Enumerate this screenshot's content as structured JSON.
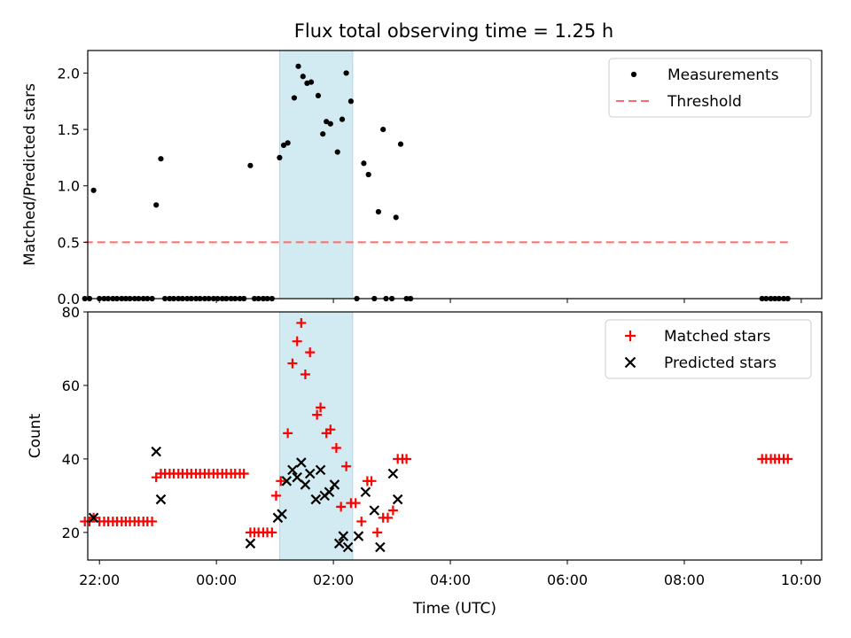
{
  "title": "Flux total observing time = 1.25 h",
  "chart_data": [
    {
      "type": "scatter",
      "ylabel": "Matched/Predicted stars",
      "xlim": [
        -2.2,
        10.35
      ],
      "ylim": [
        0,
        2.2
      ],
      "yticks": [
        0.0,
        0.5,
        1.0,
        1.5,
        2.0
      ],
      "ytick_labels": [
        "0.0",
        "0.5",
        "1.0",
        "1.5",
        "2.0"
      ],
      "legend": {
        "position": "top-right",
        "entries": [
          "Measurements",
          "Threshold"
        ]
      },
      "shaded_interval": {
        "x": [
          1.08,
          2.33
        ],
        "color": "#add8e6"
      },
      "threshold": {
        "name": "Threshold",
        "y": 0.5,
        "x": [
          -2.25,
          9.78
        ],
        "color": "#ff6b6b"
      },
      "series": [
        {
          "name": "Measurements",
          "color": "#000000",
          "points": [
            [
              -2.25,
              0
            ],
            [
              -2.17,
              0
            ],
            [
              -2.1,
              0.96
            ],
            [
              -2.0,
              0
            ],
            [
              -1.92,
              0
            ],
            [
              -1.85,
              0
            ],
            [
              -1.77,
              0
            ],
            [
              -1.7,
              0
            ],
            [
              -1.62,
              0
            ],
            [
              -1.55,
              0
            ],
            [
              -1.48,
              0
            ],
            [
              -1.4,
              0
            ],
            [
              -1.33,
              0
            ],
            [
              -1.25,
              0
            ],
            [
              -1.18,
              0
            ],
            [
              -1.1,
              0
            ],
            [
              -1.03,
              0.83
            ],
            [
              -0.95,
              1.24
            ],
            [
              -0.88,
              0
            ],
            [
              -0.8,
              0
            ],
            [
              -0.73,
              0
            ],
            [
              -0.65,
              0
            ],
            [
              -0.58,
              0
            ],
            [
              -0.5,
              0
            ],
            [
              -0.43,
              0
            ],
            [
              -0.35,
              0
            ],
            [
              -0.28,
              0
            ],
            [
              -0.2,
              0
            ],
            [
              -0.13,
              0
            ],
            [
              -0.05,
              0
            ],
            [
              0.02,
              0
            ],
            [
              0.1,
              0
            ],
            [
              0.17,
              0
            ],
            [
              0.25,
              0
            ],
            [
              0.32,
              0
            ],
            [
              0.4,
              0
            ],
            [
              0.47,
              0
            ],
            [
              0.58,
              1.18
            ],
            [
              0.65,
              0
            ],
            [
              0.72,
              0
            ],
            [
              0.8,
              0
            ],
            [
              0.87,
              0
            ],
            [
              0.95,
              0
            ],
            [
              1.08,
              1.25
            ],
            [
              1.15,
              1.36
            ],
            [
              1.22,
              1.38
            ],
            [
              1.33,
              1.78
            ],
            [
              1.4,
              2.06
            ],
            [
              1.48,
              1.97
            ],
            [
              1.55,
              1.91
            ],
            [
              1.62,
              1.92
            ],
            [
              1.74,
              1.8
            ],
            [
              1.82,
              1.46
            ],
            [
              1.88,
              1.57
            ],
            [
              1.95,
              1.55
            ],
            [
              2.07,
              1.3
            ],
            [
              2.15,
              1.59
            ],
            [
              2.22,
              2.0
            ],
            [
              2.3,
              1.75
            ],
            [
              2.4,
              0
            ],
            [
              2.52,
              1.2
            ],
            [
              2.6,
              1.1
            ],
            [
              2.7,
              0
            ],
            [
              2.77,
              0.77
            ],
            [
              2.85,
              1.5
            ],
            [
              2.9,
              0
            ],
            [
              3.0,
              0
            ],
            [
              3.07,
              0.72
            ],
            [
              3.15,
              1.37
            ],
            [
              3.25,
              0
            ],
            [
              3.32,
              0
            ],
            [
              9.33,
              0
            ],
            [
              9.4,
              0
            ],
            [
              9.48,
              0
            ],
            [
              9.55,
              0
            ],
            [
              9.62,
              0
            ],
            [
              9.7,
              0
            ],
            [
              9.77,
              0
            ]
          ]
        }
      ]
    },
    {
      "type": "scatter",
      "xlabel": "Time (UTC)",
      "ylabel": "Count",
      "xlim": [
        -2.2,
        10.35
      ],
      "ylim": [
        12.5,
        80
      ],
      "yticks": [
        20,
        40,
        60,
        80
      ],
      "ytick_labels": [
        "20",
        "40",
        "60",
        "80"
      ],
      "xticks": [
        -2,
        0,
        2,
        4,
        6,
        8,
        10
      ],
      "xtick_labels": [
        "22:00",
        "00:00",
        "02:00",
        "04:00",
        "06:00",
        "08:00",
        "10:00"
      ],
      "legend": {
        "position": "top-right",
        "entries": [
          "Matched stars",
          "Predicted stars"
        ]
      },
      "shaded_interval": {
        "x": [
          1.08,
          2.33
        ],
        "color": "#add8e6"
      },
      "series": [
        {
          "name": "Matched stars",
          "marker": "plus",
          "color": "#ff0000",
          "points": [
            [
              -2.25,
              23
            ],
            [
              -2.17,
              23
            ],
            [
              -2.1,
              24
            ],
            [
              -2.0,
              23
            ],
            [
              -1.92,
              23
            ],
            [
              -1.85,
              23
            ],
            [
              -1.77,
              23
            ],
            [
              -1.7,
              23
            ],
            [
              -1.62,
              23
            ],
            [
              -1.55,
              23
            ],
            [
              -1.48,
              23
            ],
            [
              -1.4,
              23
            ],
            [
              -1.33,
              23
            ],
            [
              -1.25,
              23
            ],
            [
              -1.18,
              23
            ],
            [
              -1.1,
              23
            ],
            [
              -1.03,
              35
            ],
            [
              -0.95,
              36
            ],
            [
              -0.88,
              36
            ],
            [
              -0.8,
              36
            ],
            [
              -0.73,
              36
            ],
            [
              -0.65,
              36
            ],
            [
              -0.58,
              36
            ],
            [
              -0.5,
              36
            ],
            [
              -0.43,
              36
            ],
            [
              -0.35,
              36
            ],
            [
              -0.28,
              36
            ],
            [
              -0.2,
              36
            ],
            [
              -0.13,
              36
            ],
            [
              -0.05,
              36
            ],
            [
              0.02,
              36
            ],
            [
              0.1,
              36
            ],
            [
              0.17,
              36
            ],
            [
              0.25,
              36
            ],
            [
              0.32,
              36
            ],
            [
              0.4,
              36
            ],
            [
              0.47,
              36
            ],
            [
              0.58,
              20
            ],
            [
              0.65,
              20
            ],
            [
              0.72,
              20
            ],
            [
              0.8,
              20
            ],
            [
              0.87,
              20
            ],
            [
              0.95,
              20
            ],
            [
              1.02,
              30
            ],
            [
              1.1,
              34
            ],
            [
              1.22,
              47
            ],
            [
              1.3,
              66
            ],
            [
              1.38,
              72
            ],
            [
              1.45,
              77
            ],
            [
              1.52,
              63
            ],
            [
              1.6,
              69
            ],
            [
              1.72,
              52
            ],
            [
              1.78,
              54
            ],
            [
              1.88,
              47
            ],
            [
              1.95,
              48
            ],
            [
              2.05,
              43
            ],
            [
              2.13,
              27
            ],
            [
              2.22,
              38
            ],
            [
              2.3,
              28
            ],
            [
              2.38,
              28
            ],
            [
              2.48,
              23
            ],
            [
              2.58,
              34
            ],
            [
              2.65,
              34
            ],
            [
              2.75,
              20
            ],
            [
              2.85,
              24
            ],
            [
              2.93,
              24
            ],
            [
              3.02,
              26
            ],
            [
              3.1,
              40
            ],
            [
              3.18,
              40
            ],
            [
              3.25,
              40
            ],
            [
              9.33,
              40
            ],
            [
              9.4,
              40
            ],
            [
              9.48,
              40
            ],
            [
              9.55,
              40
            ],
            [
              9.62,
              40
            ],
            [
              9.7,
              40
            ],
            [
              9.77,
              40
            ]
          ]
        },
        {
          "name": "Predicted stars",
          "marker": "x",
          "color": "#000000",
          "points": [
            [
              -2.1,
              24
            ],
            [
              -1.03,
              42
            ],
            [
              -0.95,
              29
            ],
            [
              0.58,
              17
            ],
            [
              1.05,
              24
            ],
            [
              1.12,
              25
            ],
            [
              1.2,
              34
            ],
            [
              1.3,
              37
            ],
            [
              1.38,
              35
            ],
            [
              1.45,
              39
            ],
            [
              1.52,
              33
            ],
            [
              1.6,
              36
            ],
            [
              1.7,
              29
            ],
            [
              1.78,
              37
            ],
            [
              1.85,
              30
            ],
            [
              1.93,
              31
            ],
            [
              2.02,
              33
            ],
            [
              2.1,
              17
            ],
            [
              2.17,
              19
            ],
            [
              2.25,
              16
            ],
            [
              2.43,
              19
            ],
            [
              2.55,
              31
            ],
            [
              2.7,
              26
            ],
            [
              2.8,
              16
            ],
            [
              3.02,
              36
            ],
            [
              3.1,
              29
            ]
          ]
        }
      ]
    }
  ]
}
